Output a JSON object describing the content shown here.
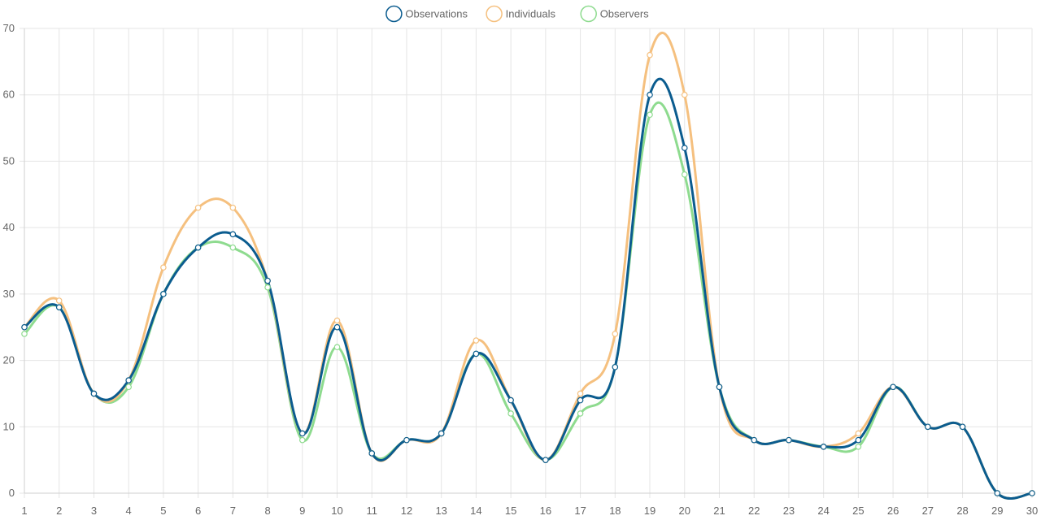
{
  "chart_data": {
    "type": "line",
    "x": [
      "1",
      "2",
      "3",
      "4",
      "5",
      "6",
      "7",
      "8",
      "9",
      "10",
      "11",
      "12",
      "13",
      "14",
      "15",
      "16",
      "17",
      "18",
      "19",
      "20",
      "21",
      "22",
      "23",
      "24",
      "25",
      "26",
      "27",
      "28",
      "29",
      "30"
    ],
    "ylim": [
      0,
      70
    ],
    "yticks": [
      "0",
      "10",
      "20",
      "30",
      "40",
      "50",
      "60",
      "70"
    ],
    "grid": true,
    "legend_position": "top-center",
    "series": [
      {
        "name": "Observations",
        "color": "#0b5c8f",
        "values": [
          25,
          28,
          15,
          17,
          30,
          37,
          39,
          32,
          9,
          25,
          6,
          8,
          9,
          21,
          14,
          5,
          14,
          19,
          60,
          52,
          16,
          8,
          8,
          7,
          8,
          16,
          10,
          10,
          0,
          0
        ]
      },
      {
        "name": "Individuals",
        "color": "#f5c07f",
        "values": [
          25,
          29,
          15,
          17,
          34,
          43,
          43,
          32,
          9,
          26,
          6,
          8,
          9,
          23,
          14,
          5,
          15,
          24,
          66,
          60,
          16,
          8,
          8,
          7,
          9,
          16,
          10,
          10,
          0,
          0
        ]
      },
      {
        "name": "Observers",
        "color": "#8edb8f",
        "values": [
          24,
          28,
          15,
          16,
          30,
          37,
          37,
          31,
          8,
          22,
          6,
          8,
          9,
          21,
          12,
          5,
          12,
          19,
          57,
          48,
          16,
          8,
          8,
          7,
          7,
          16,
          10,
          10,
          0,
          0
        ]
      }
    ]
  }
}
